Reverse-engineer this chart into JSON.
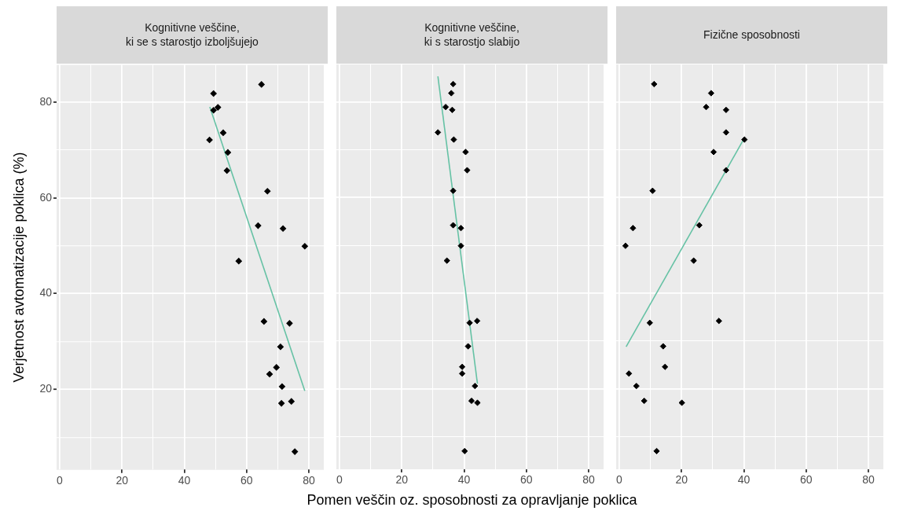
{
  "chart_data": [
    {
      "type": "scatter",
      "title": "Kognitivne veščine,\nki se s starostjo izboljšujejo",
      "ylabel": "Verjetnost avtomatizacije poklica (%)",
      "xlim": [
        -1,
        84.8
      ],
      "xticks": [
        0,
        {
          "value": 10,
          "label": null
        },
        20,
        {
          "value": 30,
          "label": null
        },
        40,
        {
          "value": 50,
          "label": null
        },
        60,
        {
          "value": 70,
          "label": null
        },
        80
      ],
      "ylim": [
        3.2,
        87.8
      ],
      "yticks": [
        {
          "value": 10,
          "label": null
        },
        20,
        {
          "value": 30,
          "label": null
        },
        40,
        {
          "value": 50,
          "label": null
        },
        60,
        {
          "value": 70,
          "label": null
        },
        80
      ],
      "grid": true,
      "legend": false,
      "marker": "diamond",
      "series": [
        {
          "color": "#000000",
          "x": [
            64.8,
            49.4,
            50.8,
            49.4,
            52.5,
            48.1,
            54.0,
            53.7,
            66.7,
            63.7,
            71.7,
            78.7,
            57.5,
            65.6,
            73.8,
            70.9,
            69.6,
            67.4,
            71.4,
            71.2,
            74.4,
            75.5
          ],
          "values": [
            83.7,
            81.8,
            78.9,
            78.3,
            73.6,
            72.1,
            69.5,
            65.7,
            61.4,
            54.2,
            53.6,
            49.9,
            46.8,
            34.2,
            33.8,
            28.9,
            24.6,
            23.2,
            20.6,
            17.1,
            17.5,
            7.0
          ]
        },
        {
          "type": "line",
          "color": "#66c2a5",
          "marker": "none",
          "x": [
            48.2,
            78.7
          ],
          "values": [
            79.0,
            19.7
          ]
        }
      ]
    },
    {
      "type": "scatter",
      "title": "Kognitivne veščine,\nki s starostjo slabijo",
      "xlabel": "Pomen veščin oz. sposobnosti za opravljanje poklica",
      "xlim": [
        -1,
        84.8
      ],
      "xticks": [
        0,
        {
          "value": 10,
          "label": null
        },
        20,
        {
          "value": 30,
          "label": null
        },
        40,
        {
          "value": 50,
          "label": null
        },
        60,
        {
          "value": 70,
          "label": null
        },
        80
      ],
      "ylim": [
        3.2,
        87.8
      ],
      "yticks": [
        {
          "value": 10,
          "label": null
        },
        20,
        {
          "value": 30,
          "label": null
        },
        40,
        {
          "value": 50,
          "label": null
        },
        60,
        {
          "value": 70,
          "label": null
        },
        80
      ],
      "tick_labels": "x",
      "grid": true,
      "legend": false,
      "marker": "diamond",
      "series": [
        {
          "color": "#000000",
          "x": [
            36.5,
            35.9,
            34.1,
            36.2,
            31.6,
            36.7,
            40.5,
            41.0,
            36.5,
            36.5,
            39.0,
            39.0,
            34.5,
            44.2,
            41.8,
            41.3,
            39.4,
            39.4,
            43.5,
            44.3,
            42.4,
            40.2
          ],
          "values": [
            83.7,
            81.8,
            78.9,
            78.3,
            73.6,
            72.1,
            69.5,
            65.7,
            61.4,
            54.2,
            53.6,
            49.9,
            46.8,
            34.2,
            33.8,
            28.9,
            24.6,
            23.2,
            20.6,
            17.1,
            17.5,
            7.0
          ]
        },
        {
          "type": "line",
          "color": "#66c2a5",
          "marker": "none",
          "x": [
            31.6,
            44.3
          ],
          "values": [
            85.3,
            21.1
          ]
        }
      ]
    },
    {
      "type": "scatter",
      "title": "Fizične sposobnosti",
      "xlim": [
        -1,
        84.8
      ],
      "xticks": [
        0,
        {
          "value": 10,
          "label": null
        },
        20,
        {
          "value": 30,
          "label": null
        },
        40,
        {
          "value": 50,
          "label": null
        },
        60,
        {
          "value": 70,
          "label": null
        },
        80
      ],
      "ylim": [
        3.2,
        87.8
      ],
      "yticks": [
        {
          "value": 10,
          "label": null
        },
        20,
        {
          "value": 30,
          "label": null
        },
        40,
        {
          "value": 50,
          "label": null
        },
        60,
        {
          "value": 70,
          "label": null
        },
        80
      ],
      "tick_labels": "x",
      "grid": true,
      "legend": false,
      "marker": "diamond",
      "series": [
        {
          "color": "#000000",
          "x": [
            11.2,
            29.5,
            27.9,
            34.3,
            34.3,
            40.2,
            30.3,
            34.3,
            10.7,
            25.7,
            4.4,
            2.0,
            23.9,
            32.0,
            9.8,
            14.1,
            14.7,
            3.1,
            5.5,
            20.1,
            8.0,
            12.0
          ],
          "values": [
            83.7,
            81.8,
            78.9,
            78.3,
            73.6,
            72.1,
            69.5,
            65.7,
            61.4,
            54.2,
            53.6,
            49.9,
            46.8,
            34.2,
            33.8,
            28.9,
            24.6,
            23.2,
            20.6,
            17.1,
            17.5,
            7.0
          ]
        },
        {
          "type": "line",
          "color": "#66c2a5",
          "marker": "none",
          "x": [
            2.2,
            40.0
          ],
          "values": [
            28.8,
            72.2
          ]
        }
      ]
    }
  ]
}
